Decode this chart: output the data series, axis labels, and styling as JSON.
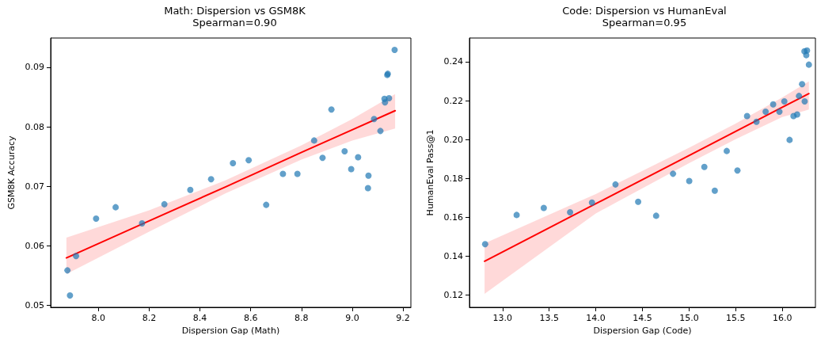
{
  "chart_data": [
    {
      "type": "scatter",
      "title": "Math: Dispersion vs GSM8K",
      "subtitle": "Spearman=0.90",
      "xlabel": "Dispersion Gap (Math)",
      "ylabel": "GSM8K Accuracy",
      "xlim": [
        7.812,
        9.231
      ],
      "ylim": [
        0.0497,
        0.0949
      ],
      "xticks": [
        {
          "value": 8,
          "label": "8.0"
        },
        {
          "value": 8.2,
          "label": "8.2"
        },
        {
          "value": 8.4,
          "label": "8.4"
        },
        {
          "value": 8.6,
          "label": "8.6"
        },
        {
          "value": 8.8,
          "label": "8.8"
        },
        {
          "value": 9,
          "label": "9.0"
        },
        {
          "value": 9.2,
          "label": "9.2"
        }
      ],
      "yticks": [
        0.05,
        0.06,
        0.07,
        0.08,
        0.09
      ],
      "grid": false,
      "marker": "circle",
      "series": [
        {
          "color": "#1f77b4",
          "x": [
            7.878,
            7.888,
            7.912,
            7.991,
            8.068,
            8.172,
            8.26,
            8.362,
            8.444,
            8.53,
            8.592,
            8.661,
            8.727,
            8.784,
            8.85,
            8.883,
            8.918,
            8.97,
            8.996,
            9.023,
            9.062,
            9.064,
            9.086,
            9.111,
            9.127,
            9.129,
            9.145,
            9.138,
            9.14,
            9.167
          ],
          "values": [
            0.0559,
            0.0517,
            0.0583,
            0.0646,
            0.0665,
            0.0638,
            0.067,
            0.0694,
            0.0712,
            0.0739,
            0.0744,
            0.0669,
            0.0721,
            0.0721,
            0.0777,
            0.0748,
            0.0829,
            0.0759,
            0.0729,
            0.0749,
            0.0697,
            0.0718,
            0.0813,
            0.0793,
            0.0847,
            0.0841,
            0.0848,
            0.0887,
            0.0889,
            0.0929
          ]
        },
        {
          "type": "line",
          "marker": "none",
          "color": "#ff0000",
          "x": [
            7.874,
            8.2,
            8.5,
            8.8,
            9,
            9.169
          ],
          "values": [
            0.058,
            0.0642,
            0.0699,
            0.0757,
            0.0795,
            0.0827
          ],
          "lower": [
            0.0553,
            0.0624,
            0.0688,
            0.0745,
            0.0777,
            0.0797
          ],
          "upper": [
            0.0614,
            0.066,
            0.071,
            0.0769,
            0.0813,
            0.0855
          ]
        }
      ]
    },
    {
      "type": "scatter",
      "title": "Code: Dispersion vs HumanEval",
      "subtitle": "Spearman=0.95",
      "xlabel": "Dispersion Gap (Code)",
      "ylabel": "HumanEval Pass@1",
      "xlim": [
        12.645,
        16.355
      ],
      "ylim": [
        0.1137,
        0.2522
      ],
      "xticks": [
        {
          "value": 13,
          "label": "13.0"
        },
        {
          "value": 13.5,
          "label": "13.5"
        },
        {
          "value": 14,
          "label": "14.0"
        },
        {
          "value": 14.5,
          "label": "14.5"
        },
        {
          "value": 15,
          "label": "15.0"
        },
        {
          "value": 15.5,
          "label": "15.5"
        },
        {
          "value": 16,
          "label": "16.0"
        }
      ],
      "yticks": [
        {
          "value": 0.12,
          "label": "0.12"
        },
        {
          "value": 0.14,
          "label": "0.14"
        },
        {
          "value": 0.16,
          "label": "0.16"
        },
        {
          "value": 0.18,
          "label": "0.18"
        },
        {
          "value": 0.2,
          "label": "0.20"
        },
        {
          "value": 0.22,
          "label": "0.22"
        },
        {
          "value": 0.24,
          "label": "0.24"
        }
      ],
      "grid": false,
      "marker": "circle",
      "series": [
        {
          "color": "#1f77b4",
          "x": [
            12.813,
            13.151,
            13.442,
            13.724,
            13.959,
            14.211,
            14.454,
            14.647,
            14.828,
            15.002,
            15.164,
            15.276,
            15.404,
            15.519,
            15.622,
            15.723,
            15.821,
            15.902,
            15.969,
            16.022,
            16.078,
            16.12,
            16.159,
            16.179,
            16.212,
            16.24,
            16.237,
            16.265,
            16.257,
            16.285
          ],
          "values": [
            0.1462,
            0.1612,
            0.1648,
            0.1626,
            0.1676,
            0.1769,
            0.168,
            0.1608,
            0.1824,
            0.1787,
            0.1859,
            0.1737,
            0.1941,
            0.1841,
            0.2121,
            0.2091,
            0.2143,
            0.2181,
            0.2143,
            0.2196,
            0.1998,
            0.2121,
            0.2129,
            0.2224,
            0.2285,
            0.2196,
            0.2454,
            0.2458,
            0.2434,
            0.2385
          ]
        },
        {
          "type": "line",
          "marker": "none",
          "color": "#ff0000",
          "x": [
            12.807,
            14,
            15,
            15.5,
            16,
            16.285
          ],
          "values": [
            0.1374,
            0.167,
            0.1918,
            0.2042,
            0.2166,
            0.2236
          ],
          "lower": [
            0.1206,
            0.162,
            0.1878,
            0.2002,
            0.2116,
            0.2154
          ],
          "upper": [
            0.1466,
            0.172,
            0.1958,
            0.2082,
            0.2216,
            0.2299
          ]
        }
      ]
    }
  ]
}
